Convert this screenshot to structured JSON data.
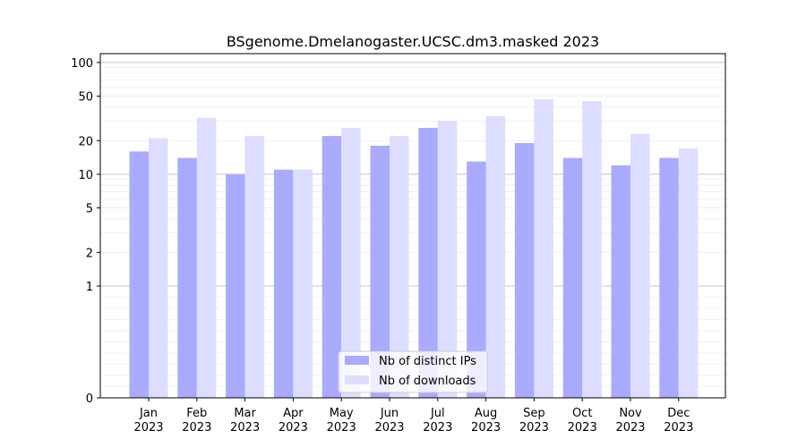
{
  "chart_data": {
    "type": "bar",
    "title": "BSgenome.Dmelanogaster.UCSC.dm3.masked 2023",
    "xlabel": "",
    "ylabel": "",
    "y_scale": "symlog",
    "y_ticks": [
      0,
      1,
      2,
      5,
      10,
      20,
      50,
      100
    ],
    "ylim": [
      0,
      120
    ],
    "grid": "horizontal",
    "legend_position": "bottom-center",
    "categories": [
      [
        "Jan",
        "2023"
      ],
      [
        "Feb",
        "2023"
      ],
      [
        "Mar",
        "2023"
      ],
      [
        "Apr",
        "2023"
      ],
      [
        "May",
        "2023"
      ],
      [
        "Jun",
        "2023"
      ],
      [
        "Jul",
        "2023"
      ],
      [
        "Aug",
        "2023"
      ],
      [
        "Sep",
        "2023"
      ],
      [
        "Oct",
        "2023"
      ],
      [
        "Nov",
        "2023"
      ],
      [
        "Dec",
        "2023"
      ]
    ],
    "series": [
      {
        "name": "Nb of distinct IPs",
        "color": "#aaaaff",
        "values": [
          16,
          14,
          10,
          11,
          22,
          18,
          26,
          13,
          19,
          14,
          12,
          14
        ]
      },
      {
        "name": "Nb of downloads",
        "color": "#ddddff",
        "values": [
          21,
          32,
          22,
          11,
          26,
          22,
          30,
          33,
          47,
          45,
          23,
          17
        ]
      }
    ]
  }
}
